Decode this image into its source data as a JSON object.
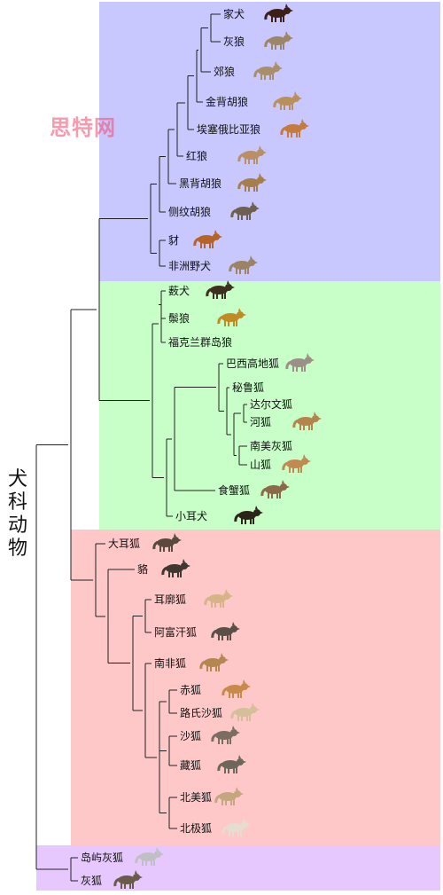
{
  "title": "犬科动物",
  "watermark": "思特网",
  "colors": {
    "blue": "#c8c8ff",
    "green": "#c8ffc8",
    "red": "#ffc8c8",
    "purple": "#e6c8ff"
  },
  "species": [
    {
      "name": "家犬",
      "color": "#3a2016"
    },
    {
      "name": "灰狼",
      "color": "#9c8668"
    },
    {
      "name": "郊狼",
      "color": "#a98e6a"
    },
    {
      "name": "金背胡狼",
      "color": "#b9905a"
    },
    {
      "name": "埃塞俄比亚狼",
      "color": "#c57a3e"
    },
    {
      "name": "红狼",
      "color": "#b99066"
    },
    {
      "name": "黑背胡狼",
      "color": "#a57e4e"
    },
    {
      "name": "侧纹胡狼",
      "color": "#6e6050"
    },
    {
      "name": "豺",
      "color": "#b4642a"
    },
    {
      "name": "非洲野犬",
      "color": "#9a8464"
    },
    {
      "name": "薮犬",
      "color": "#3e3020"
    },
    {
      "name": "鬃狼",
      "color": "#c08a24"
    },
    {
      "name": "福克兰群岛狼",
      "color": ""
    },
    {
      "name": "巴西高地狐",
      "color": "#9a9088"
    },
    {
      "name": "秘鲁狐",
      "color": ""
    },
    {
      "name": "达尔文狐",
      "color": ""
    },
    {
      "name": "河狐",
      "color": "#b4844c"
    },
    {
      "name": "南美灰狐",
      "color": ""
    },
    {
      "name": "山狐",
      "color": "#c08a50"
    },
    {
      "name": "食蟹狐",
      "color": "#8a6a48"
    },
    {
      "name": "小耳犬",
      "color": "#2c2418"
    },
    {
      "name": "大耳狐",
      "color": "#5a4a3e"
    },
    {
      "name": "貉",
      "color": "#3e3830"
    },
    {
      "name": "耳廓狐",
      "color": "#d6b488"
    },
    {
      "name": "阿富汗狐",
      "color": "#5a5048"
    },
    {
      "name": "南非狐",
      "color": "#b48650"
    },
    {
      "name": "赤狐",
      "color": "#c88a48"
    },
    {
      "name": "路氏沙狐",
      "color": "#d4c098"
    },
    {
      "name": "沙狐",
      "color": "#7a6e62"
    },
    {
      "name": "藏狐",
      "color": "#6e665a"
    },
    {
      "name": "北美狐",
      "color": "#c4a680"
    },
    {
      "name": "北极狐",
      "color": "#e4ddd0"
    },
    {
      "name": "岛屿灰狐",
      "color": "#c0c0c4"
    },
    {
      "name": "灰狐",
      "color": "#6a5a4a"
    }
  ]
}
